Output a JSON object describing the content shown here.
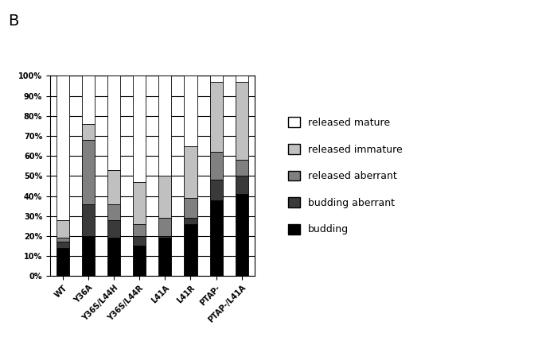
{
  "chart_data": {
    "type": "bar",
    "stacked": true,
    "grid": true,
    "legend": "center left",
    "annotations": [
      "B"
    ],
    "categories": [
      "WT",
      "Y36A",
      "Y36S/L44H",
      "Y36S/L44R",
      "L41A",
      "L41R",
      "PTAP-",
      "PTAP-/L41A"
    ],
    "series": [
      {
        "name": "budding",
        "color": "#000000",
        "values": [
          14,
          20,
          19,
          15,
          19,
          26,
          38,
          41
        ]
      },
      {
        "name": "budding aberrant",
        "color": "#3a3a3a",
        "values": [
          3,
          16,
          9,
          5,
          1,
          3,
          10,
          9
        ]
      },
      {
        "name": "released aberrant",
        "color": "#808080",
        "values": [
          2,
          32,
          8,
          6,
          9,
          10,
          14,
          8
        ]
      },
      {
        "name": "released immature",
        "color": "#c0c0c0",
        "values": [
          9,
          8,
          17,
          21,
          21,
          26,
          35,
          39
        ]
      },
      {
        "name": "released mature",
        "color": "#ffffff",
        "values": [
          72,
          24,
          47,
          53,
          50,
          35,
          3,
          3
        ]
      }
    ],
    "ylim": [
      0,
      100
    ],
    "yticks": [
      {
        "value": 0,
        "label": "0%"
      },
      {
        "value": 10,
        "label": "10%"
      },
      {
        "value": 20,
        "label": "20%"
      },
      {
        "value": 30,
        "label": "30%"
      },
      {
        "value": 40,
        "label": "40%"
      },
      {
        "value": 50,
        "label": "50%"
      },
      {
        "value": 60,
        "label": "60%"
      },
      {
        "value": 70,
        "label": "70%"
      },
      {
        "value": 80,
        "label": "80%"
      },
      {
        "value": 90,
        "label": "90%"
      },
      {
        "value": 100,
        "label": "100%"
      }
    ]
  }
}
